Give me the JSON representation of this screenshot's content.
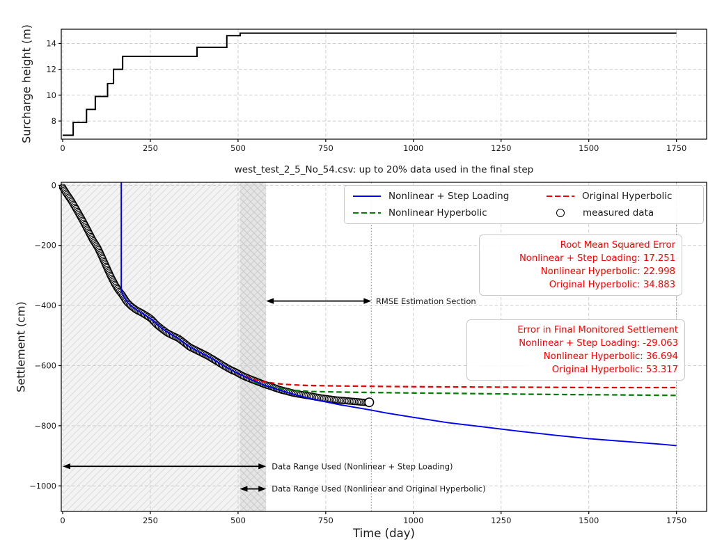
{
  "chart_data": [
    {
      "type": "line",
      "name": "surcharge-loading-plot",
      "ylabel": "Surcharge height (m)",
      "xlim": [
        -4,
        1836
      ],
      "ylim": [
        6.6,
        15.1
      ],
      "xticks": [
        0,
        250,
        500,
        750,
        1000,
        1250,
        1500,
        1750
      ],
      "yticks": [
        8,
        10,
        12,
        14
      ],
      "yticklabels": [
        "8",
        "10",
        "12",
        "14"
      ],
      "grid": true,
      "series": [
        {
          "name": "surcharge-height",
          "color": "#000000",
          "style": "step",
          "points": [
            [
              0,
              6.9
            ],
            [
              30,
              7.9
            ],
            [
              68,
              8.9
            ],
            [
              93,
              9.9
            ],
            [
              128,
              10.9
            ],
            [
              145,
              12.0
            ],
            [
              171,
              13.0
            ],
            [
              383,
              13.7
            ],
            [
              468,
              14.6
            ],
            [
              506,
              14.8
            ],
            [
              1750,
              14.8
            ]
          ]
        }
      ]
    },
    {
      "type": "line+scatter",
      "name": "settlement-plot",
      "title": "west_test_2_5_No_54.csv: up to 20% data used in the final step",
      "xlabel": "Time (day)",
      "ylabel": "Settlement (cm)",
      "xlim": [
        -4,
        1836
      ],
      "ylim": [
        -1085,
        10
      ],
      "xticks": [
        0,
        250,
        500,
        750,
        1000,
        1250,
        1500,
        1750
      ],
      "yticks": [
        0,
        -200,
        -400,
        -600,
        -800,
        -1000
      ],
      "yticklabels": [
        "0",
        "−200",
        "−400",
        "−600",
        "−800",
        "−1000"
      ],
      "grid": true,
      "regions": [
        {
          "name": "step-loading-fit-range",
          "x0": 0,
          "x1": 580,
          "hatch": "/"
        },
        {
          "name": "hyperbolic-fit-range",
          "x0": 505,
          "x1": 580,
          "hatch": "x"
        }
      ],
      "vlines": [
        {
          "name": "measured-data-end",
          "x": 880,
          "style": "dotted"
        },
        {
          "name": "prediction-end",
          "x": 1750,
          "style": "dotted"
        }
      ],
      "legend": {
        "position": "upper right",
        "items": [
          {
            "label": "Nonlinear + Step Loading",
            "color": "#0000ee",
            "style": "solid"
          },
          {
            "label": "Nonlinear Hyperbolic",
            "color": "#008000",
            "style": "dashed"
          },
          {
            "label": "Original Hyperbolic",
            "color": "#ee0000",
            "style": "dashed"
          },
          {
            "label": "measured data",
            "color": "#000000",
            "style": "circle"
          }
        ]
      },
      "series": [
        {
          "name": "measured data",
          "color": "#000000",
          "style": "scatter",
          "marker": "open-circle",
          "final_point": [
            874,
            -722
          ],
          "points": [
            [
              0,
              -7
            ],
            [
              10,
              -26
            ],
            [
              25,
              -52
            ],
            [
              40,
              -82
            ],
            [
              55,
              -113
            ],
            [
              70,
              -146
            ],
            [
              85,
              -180
            ],
            [
              100,
              -208
            ],
            [
              112,
              -238
            ],
            [
              125,
              -272
            ],
            [
              138,
              -305
            ],
            [
              150,
              -332
            ],
            [
              160,
              -350
            ],
            [
              170,
              -365
            ],
            [
              182,
              -387
            ],
            [
              195,
              -402
            ],
            [
              210,
              -415
            ],
            [
              225,
              -424
            ],
            [
              238,
              -433
            ],
            [
              252,
              -444
            ],
            [
              268,
              -464
            ],
            [
              282,
              -477
            ],
            [
              298,
              -491
            ],
            [
              315,
              -501
            ],
            [
              330,
              -509
            ],
            [
              345,
              -522
            ],
            [
              362,
              -538
            ],
            [
              378,
              -547
            ],
            [
              395,
              -557
            ],
            [
              412,
              -567
            ],
            [
              428,
              -578
            ],
            [
              445,
              -590
            ],
            [
              460,
              -601
            ],
            [
              478,
              -613
            ],
            [
              495,
              -622
            ],
            [
              512,
              -633
            ],
            [
              530,
              -642
            ],
            [
              548,
              -650
            ],
            [
              565,
              -658
            ],
            [
              582,
              -665
            ],
            [
              600,
              -672
            ],
            [
              620,
              -680
            ],
            [
              640,
              -686
            ],
            [
              660,
              -692
            ],
            [
              680,
              -696
            ],
            [
              700,
              -700
            ],
            [
              720,
              -704
            ],
            [
              740,
              -708
            ],
            [
              760,
              -711
            ],
            [
              780,
              -714
            ],
            [
              800,
              -716
            ],
            [
              820,
              -718
            ],
            [
              840,
              -720
            ],
            [
              858,
              -722
            ],
            [
              870,
              -723
            ]
          ]
        },
        {
          "name": "Original Hyperbolic",
          "color": "#ee0000",
          "style": "dashed",
          "points": [
            [
              498,
              -626
            ],
            [
              520,
              -636
            ],
            [
              545,
              -646
            ],
            [
              570,
              -653
            ],
            [
              600,
              -658
            ],
            [
              630,
              -662
            ],
            [
              660,
              -664
            ],
            [
              700,
              -666
            ],
            [
              750,
              -667
            ],
            [
              820,
              -668
            ],
            [
              900,
              -669
            ],
            [
              1000,
              -670
            ],
            [
              1150,
              -671
            ],
            [
              1350,
              -672
            ],
            [
              1550,
              -673
            ],
            [
              1750,
              -673
            ]
          ]
        },
        {
          "name": "Nonlinear Hyperbolic",
          "color": "#008000",
          "style": "dashed",
          "points": [
            [
              545,
              -655
            ],
            [
              570,
              -664
            ],
            [
              595,
              -671
            ],
            [
              620,
              -677
            ],
            [
              650,
              -681
            ],
            [
              680,
              -684
            ],
            [
              710,
              -686
            ],
            [
              750,
              -687
            ],
            [
              800,
              -688
            ],
            [
              860,
              -689
            ],
            [
              930,
              -690
            ],
            [
              1000,
              -691
            ],
            [
              1100,
              -692
            ],
            [
              1250,
              -694
            ],
            [
              1400,
              -696
            ],
            [
              1550,
              -697
            ],
            [
              1750,
              -699
            ]
          ]
        },
        {
          "name": "Nonlinear + Step Loading",
          "color": "#0000ee",
          "style": "solid",
          "points": [
            [
              167,
              10
            ],
            [
              167,
              -352
            ],
            [
              175,
              -372
            ],
            [
              185,
              -390
            ],
            [
              195,
              -401
            ],
            [
              210,
              -414
            ],
            [
              225,
              -425
            ],
            [
              240,
              -436
            ],
            [
              255,
              -447
            ],
            [
              270,
              -464
            ],
            [
              285,
              -478
            ],
            [
              300,
              -490
            ],
            [
              315,
              -500
            ],
            [
              330,
              -510
            ],
            [
              345,
              -523
            ],
            [
              362,
              -538
            ],
            [
              380,
              -549
            ],
            [
              400,
              -561
            ],
            [
              420,
              -573
            ],
            [
              440,
              -587
            ],
            [
              460,
              -601
            ],
            [
              480,
              -614
            ],
            [
              500,
              -626
            ],
            [
              520,
              -637
            ],
            [
              540,
              -648
            ],
            [
              560,
              -658
            ],
            [
              580,
              -667
            ],
            [
              610,
              -678
            ],
            [
              640,
              -689
            ],
            [
              670,
              -699
            ],
            [
              700,
              -708
            ],
            [
              730,
              -716
            ],
            [
              760,
              -723
            ],
            [
              790,
              -730
            ],
            [
              820,
              -736
            ],
            [
              850,
              -742
            ],
            [
              880,
              -748
            ],
            [
              920,
              -757
            ],
            [
              1000,
              -772
            ],
            [
              1100,
              -790
            ],
            [
              1200,
              -804
            ],
            [
              1300,
              -818
            ],
            [
              1400,
              -831
            ],
            [
              1500,
              -843
            ],
            [
              1600,
              -852
            ],
            [
              1700,
              -861
            ],
            [
              1750,
              -866
            ]
          ]
        }
      ],
      "arrows": [
        {
          "name": "rmse-estimation-arrow",
          "x0": 580,
          "x1": 880,
          "y": -385,
          "label": "RMSE Estimation Section",
          "label_x": 893
        },
        {
          "name": "data-range-step-loading-arrow",
          "x0": 0,
          "x1": 580,
          "y": -935,
          "label": "Data Range Used (Nonlinear + Step Loading)",
          "label_x": 596
        },
        {
          "name": "data-range-hyperbolic-arrow",
          "x0": 505,
          "x1": 580,
          "y": -1010,
          "label": "Data Range Used (Nonlinear and Original Hyperbolic)",
          "label_x": 596
        }
      ],
      "text_boxes": {
        "rmse": {
          "color": "#ff0000",
          "align": "right",
          "lines": [
            "Root Mean Squared Error",
            "Nonlinear + Step Loading: 17.251",
            "Nonlinear Hyperbolic: 22.998",
            "Original Hyperbolic: 34.883"
          ]
        },
        "final_error": {
          "color": "#ff0000",
          "align": "right",
          "lines": [
            "Error in Final Monitored Settlement",
            "Nonlinear + Step Loading: -29.063",
            "Nonlinear Hyperbolic: 36.694",
            "Original Hyperbolic: 53.317"
          ]
        }
      }
    }
  ]
}
